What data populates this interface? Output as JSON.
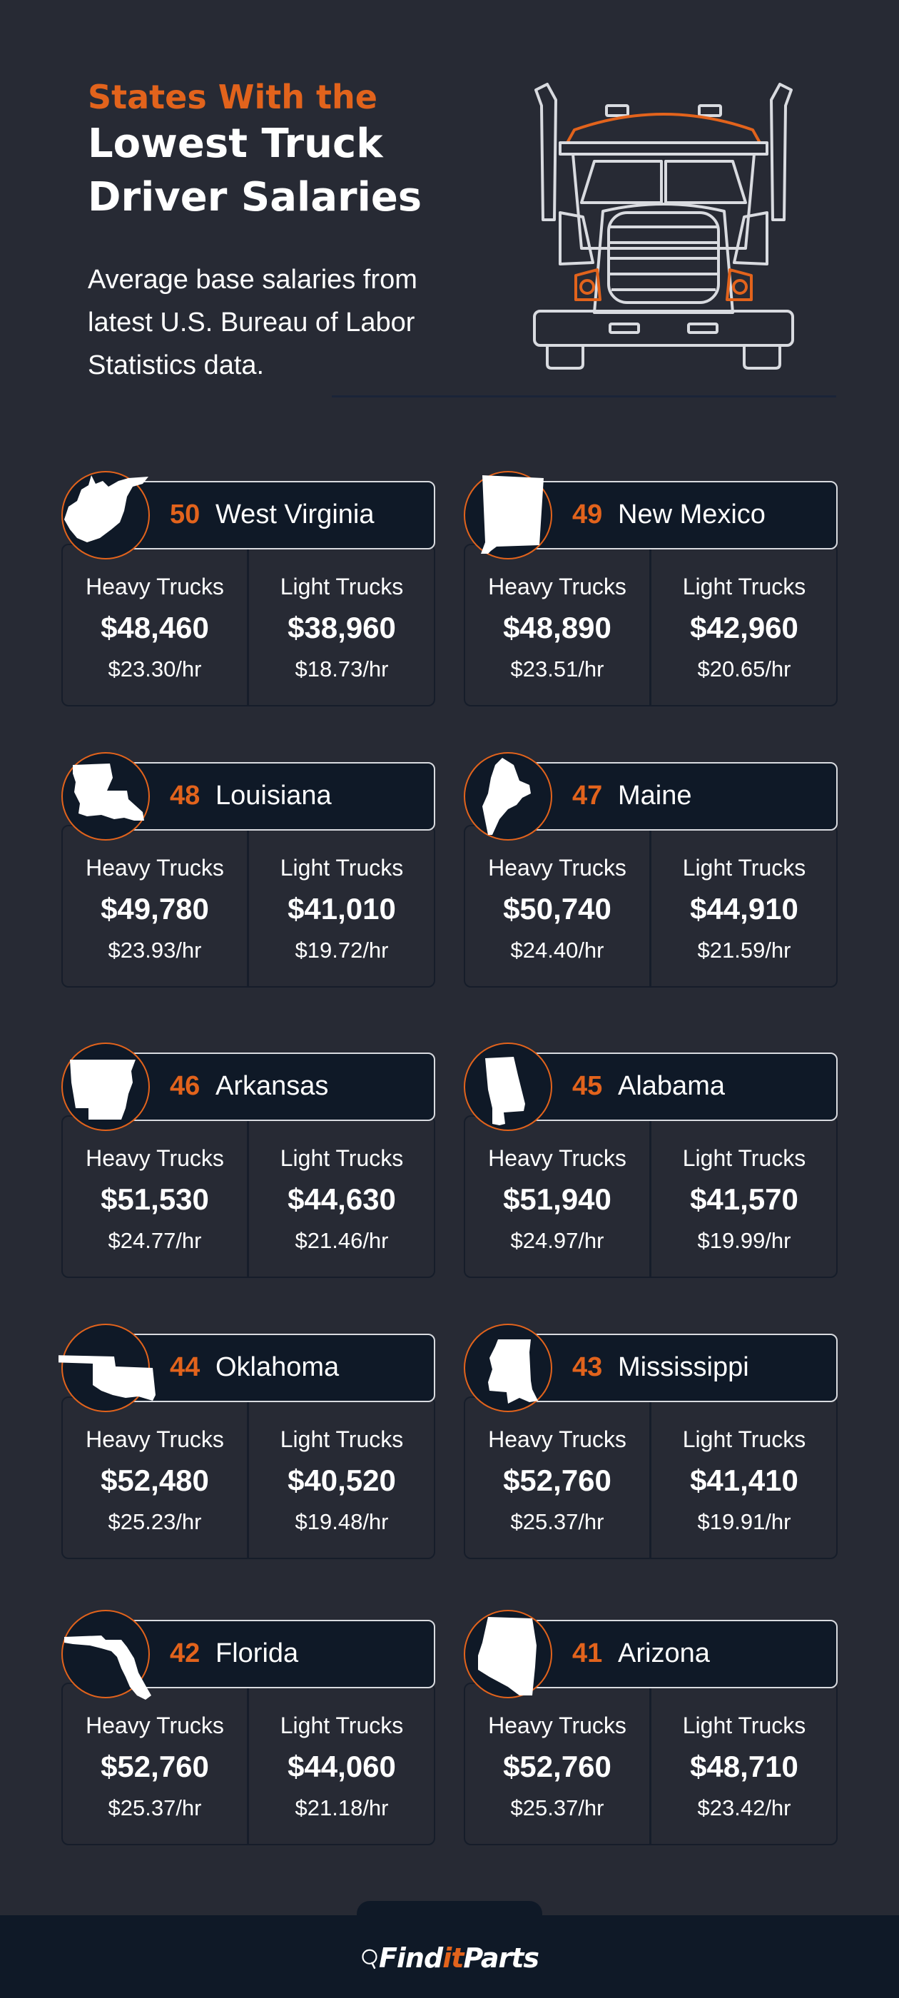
{
  "header": {
    "kicker": "States With the",
    "title_line1": "Lowest Truck",
    "title_line2": "Driver Salaries",
    "subtitle": "Average base salaries from latest U.S. Bureau of Labor Statistics data."
  },
  "colors": {
    "background": "#272a34",
    "accent": "#e2631c",
    "banner": "#0f1927"
  },
  "cards": [
    {
      "rank": "50",
      "state": "West Virginia",
      "icon": "west-virginia-map-icon",
      "heavy_label": "Heavy Trucks",
      "heavy_salary": "$48,460",
      "heavy_hourly": "$23.30/hr",
      "light_label": "Light Trucks",
      "light_salary": "$38,960",
      "light_hourly": "$18.73/hr"
    },
    {
      "rank": "49",
      "state": "New Mexico",
      "icon": "new-mexico-map-icon",
      "heavy_label": "Heavy Trucks",
      "heavy_salary": "$48,890",
      "heavy_hourly": "$23.51/hr",
      "light_label": "Light Trucks",
      "light_salary": "$42,960",
      "light_hourly": "$20.65/hr"
    },
    {
      "rank": "48",
      "state": "Louisiana",
      "icon": "louisiana-map-icon",
      "heavy_label": "Heavy Trucks",
      "heavy_salary": "$49,780",
      "heavy_hourly": "$23.93/hr",
      "light_label": "Light Trucks",
      "light_salary": "$41,010",
      "light_hourly": "$19.72/hr"
    },
    {
      "rank": "47",
      "state": "Maine",
      "icon": "maine-map-icon",
      "heavy_label": "Heavy Trucks",
      "heavy_salary": "$50,740",
      "heavy_hourly": "$24.40/hr",
      "light_label": "Light Trucks",
      "light_salary": "$44,910",
      "light_hourly": "$21.59/hr"
    },
    {
      "rank": "46",
      "state": "Arkansas",
      "icon": "arkansas-map-icon",
      "heavy_label": "Heavy Trucks",
      "heavy_salary": "$51,530",
      "heavy_hourly": "$24.77/hr",
      "light_label": "Light Trucks",
      "light_salary": "$44,630",
      "light_hourly": "$21.46/hr"
    },
    {
      "rank": "45",
      "state": "Alabama",
      "icon": "alabama-map-icon",
      "heavy_label": "Heavy Trucks",
      "heavy_salary": "$51,940",
      "heavy_hourly": "$24.97/hr",
      "light_label": "Light Trucks",
      "light_salary": "$41,570",
      "light_hourly": "$19.99/hr"
    },
    {
      "rank": "44",
      "state": "Oklahoma",
      "icon": "oklahoma-map-icon",
      "heavy_label": "Heavy Trucks",
      "heavy_salary": "$52,480",
      "heavy_hourly": "$25.23/hr",
      "light_label": "Light Trucks",
      "light_salary": "$40,520",
      "light_hourly": "$19.48/hr"
    },
    {
      "rank": "43",
      "state": "Mississippi",
      "icon": "mississippi-map-icon",
      "heavy_label": "Heavy Trucks",
      "heavy_salary": "$52,760",
      "heavy_hourly": "$25.37/hr",
      "light_label": "Light Trucks",
      "light_salary": "$41,410",
      "light_hourly": "$19.91/hr"
    },
    {
      "rank": "42",
      "state": "Florida",
      "icon": "florida-map-icon",
      "heavy_label": "Heavy Trucks",
      "heavy_salary": "$52,760",
      "heavy_hourly": "$25.37/hr",
      "light_label": "Light Trucks",
      "light_salary": "$44,060",
      "light_hourly": "$21.18/hr"
    },
    {
      "rank": "41",
      "state": "Arizona",
      "icon": "arizona-map-icon",
      "heavy_label": "Heavy Trucks",
      "heavy_salary": "$52,760",
      "heavy_hourly": "$25.37/hr",
      "light_label": "Light Trucks",
      "light_salary": "$48,710",
      "light_hourly": "$23.42/hr"
    }
  ],
  "footer": {
    "logo_find": "Find",
    "logo_it": "it",
    "logo_parts": "Parts",
    "logo_icon": "magnifier-icon"
  }
}
